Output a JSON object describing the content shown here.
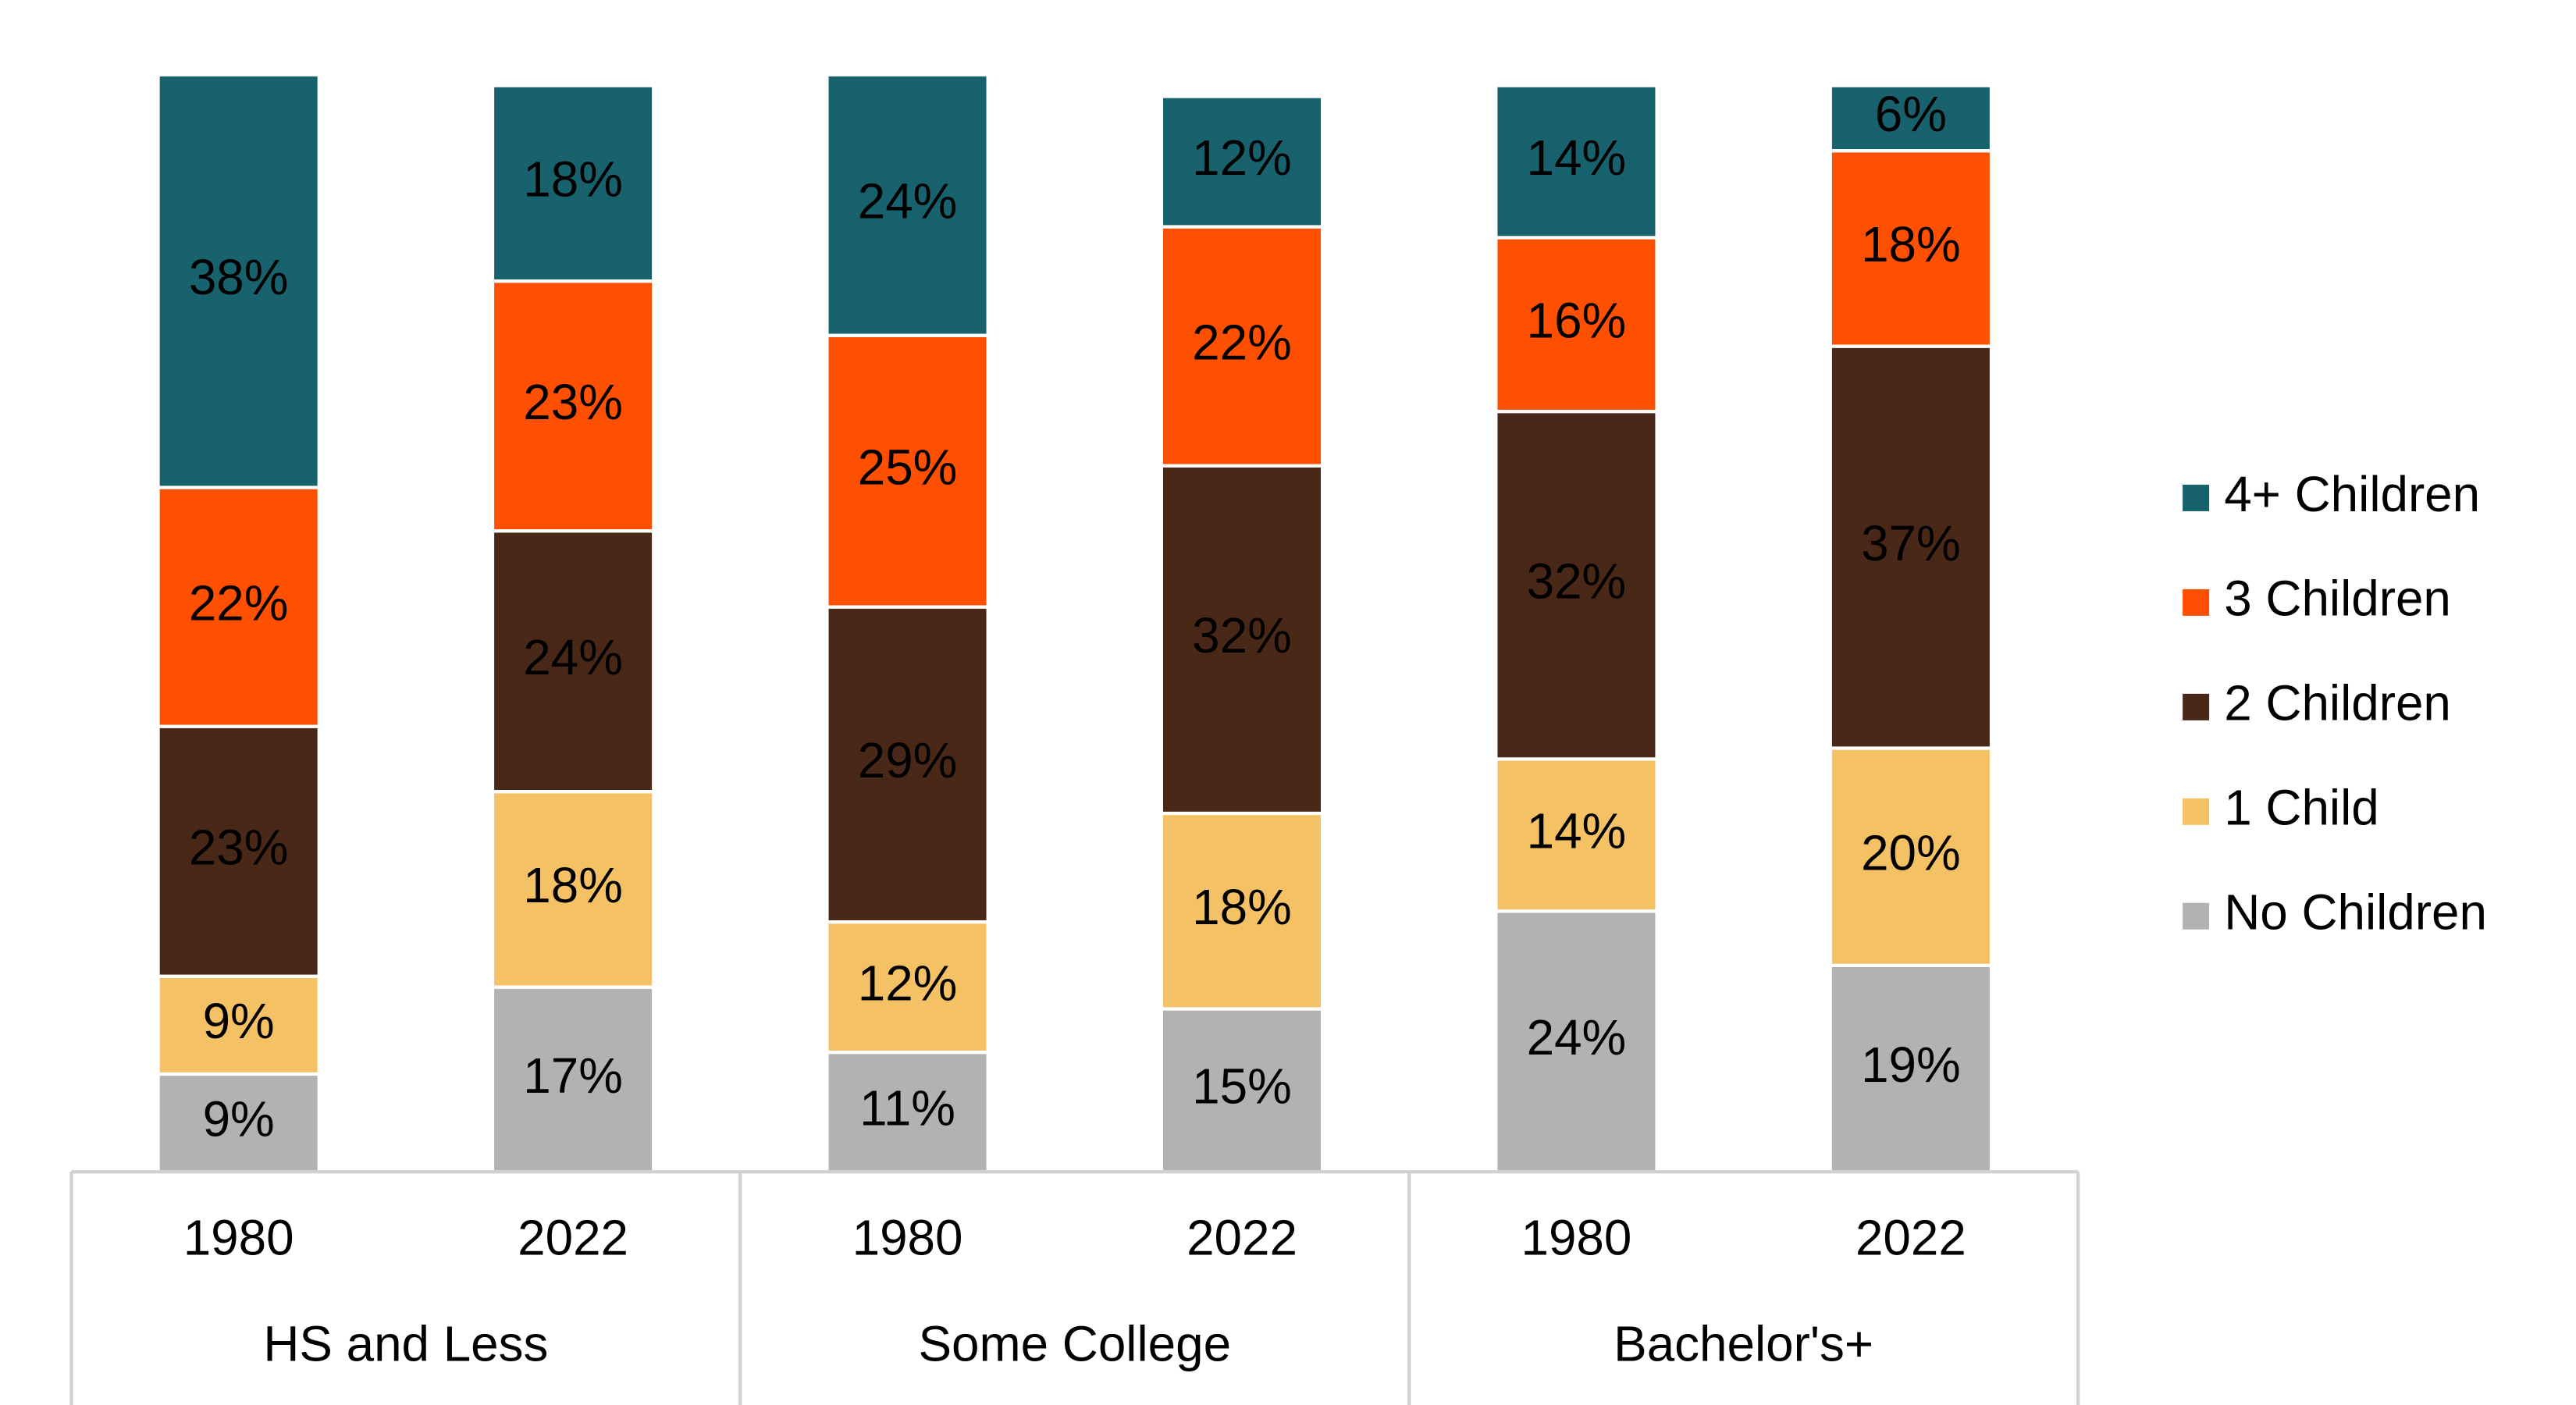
{
  "chart_data": {
    "type": "stacked_bar",
    "groups": [
      "HS and Less",
      "Some College",
      "Bachelor's+"
    ],
    "categories": [
      "1980",
      "2022",
      "1980",
      "2022",
      "1980",
      "2022"
    ],
    "series": [
      {
        "name": "No Children",
        "color": "#b2b2b2",
        "values": [
          9,
          17,
          11,
          15,
          24,
          19
        ]
      },
      {
        "name": "1 Child",
        "color": "#f4c265",
        "values": [
          9,
          18,
          12,
          18,
          14,
          20
        ]
      },
      {
        "name": "2 Children",
        "color": "#4a2818",
        "values": [
          23,
          24,
          29,
          32,
          32,
          37
        ]
      },
      {
        "name": "3 Children",
        "color": "#fe5000",
        "values": [
          22,
          23,
          25,
          22,
          16,
          18
        ]
      },
      {
        "name": "4+ Children",
        "color": "#17626c",
        "values": [
          38,
          18,
          24,
          12,
          14,
          6
        ]
      }
    ],
    "value_labels": [
      [
        "9%",
        "17%",
        "11%",
        "15%",
        "24%",
        "19%"
      ],
      [
        "9%",
        "18%",
        "12%",
        "18%",
        "14%",
        "20%"
      ],
      [
        "23%",
        "24%",
        "29%",
        "32%",
        "32%",
        "37%"
      ],
      [
        "22%",
        "23%",
        "25%",
        "22%",
        "16%",
        "18%"
      ],
      [
        "38%",
        "18%",
        "24%",
        "12%",
        "14%",
        "6%"
      ]
    ],
    "legend": "right"
  }
}
